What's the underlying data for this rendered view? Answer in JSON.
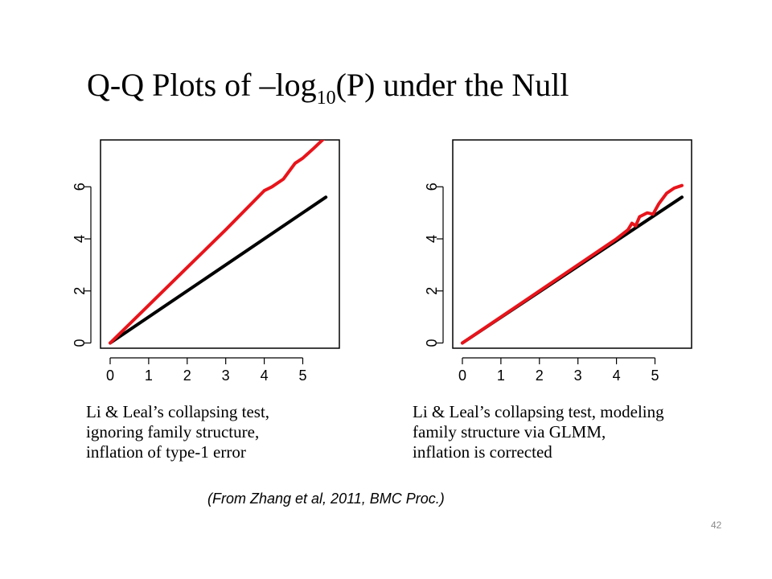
{
  "slide": {
    "title_prefix": "Q-Q Plots of –log",
    "title_subscript": "10",
    "title_suffix": "(P)  under the Null",
    "source_note": "(From Zhang et al, 2011, BMC Proc.)",
    "page_number": "42"
  },
  "chart_data": [
    {
      "type": "line",
      "xlim": [
        -0.25,
        5.95
      ],
      "ylim": [
        -0.2,
        7.8
      ],
      "x_ticks": [
        "0",
        "1",
        "2",
        "3",
        "4",
        "5"
      ],
      "y_ticks": [
        "0",
        "2",
        "4",
        "6"
      ],
      "grid": false,
      "series": [
        {
          "color": "#000000",
          "x": [
            0,
            5.6
          ],
          "y": [
            0,
            5.6
          ]
        },
        {
          "color": "#e8141b",
          "x": [
            0,
            1,
            2,
            3,
            4,
            4.2,
            4.5,
            4.8,
            5.0,
            5.3,
            5.55
          ],
          "y": [
            0,
            1.45,
            2.9,
            4.35,
            5.85,
            6.0,
            6.3,
            6.9,
            7.1,
            7.5,
            7.85
          ]
        }
      ],
      "caption": [
        "Li & Leal’s collapsing test,",
        "ignoring family structure,",
        "inflation of type-1 error"
      ]
    },
    {
      "type": "line",
      "xlim": [
        -0.25,
        5.95
      ],
      "ylim": [
        -0.2,
        7.8
      ],
      "x_ticks": [
        "0",
        "1",
        "2",
        "3",
        "4",
        "5"
      ],
      "y_ticks": [
        "0",
        "2",
        "4",
        "6"
      ],
      "grid": false,
      "series": [
        {
          "color": "#000000",
          "x": [
            0,
            5.7
          ],
          "y": [
            0,
            5.6
          ]
        },
        {
          "color": "#e8141b",
          "x": [
            0,
            1,
            2,
            3,
            4,
            4.3,
            4.4,
            4.5,
            4.6,
            4.8,
            4.95,
            5.1,
            5.3,
            5.5,
            5.7
          ],
          "y": [
            0,
            1.0,
            2.0,
            3.0,
            4.0,
            4.35,
            4.6,
            4.5,
            4.85,
            5.0,
            4.95,
            5.35,
            5.75,
            5.95,
            6.05
          ]
        }
      ],
      "caption": [
        "Li & Leal’s collapsing test, modeling",
        "family structure via GLMM,",
        "inflation is corrected"
      ]
    }
  ]
}
